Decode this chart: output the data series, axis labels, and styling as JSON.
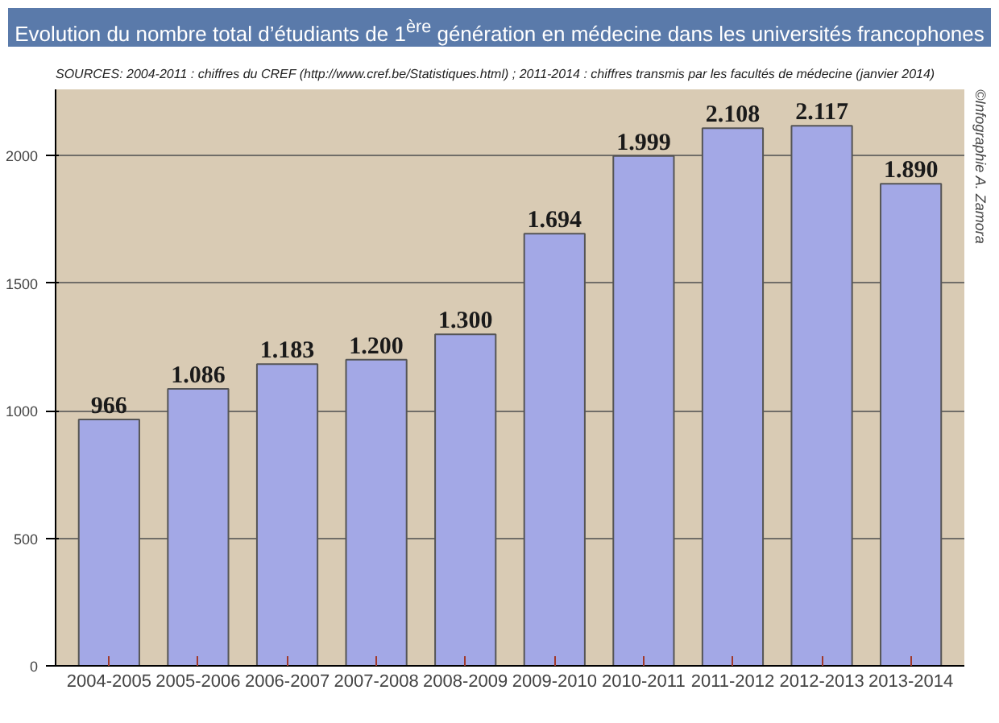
{
  "chart_data": {
    "type": "bar",
    "title": "Evolution du nombre total d’étudiants de 1$^{ère}$ génération en médecine dans les universités francophones",
    "subtitle": "SOURCES: 2004-2011 : chiffres du CREF (http://www.cref.be/Statistiques.html) ; 2011-2014 : chiffres transmis par les facultés de médecine (janvier 2014)",
    "annotations": [
      "©Infographie A. Zamora"
    ],
    "categories": [
      "2004-2005",
      "2005-2006",
      "2006-2007",
      "2007-2008",
      "2008-2009",
      "2009-2010",
      "2010-2011",
      "2011-2012",
      "2012-2013",
      "2013-2014"
    ],
    "values": [
      966,
      1086,
      1183,
      1200,
      1300,
      1694,
      1999,
      2108,
      2117,
      1890
    ],
    "value_labels": [
      "966",
      "1.086",
      "1.183",
      "1.200",
      "1.300",
      "1.694",
      "1.999",
      "2.108",
      "2.117",
      "1.890"
    ],
    "color": "#a3a8e6",
    "ylim": [
      0,
      2260
    ],
    "yticks": [
      0,
      500,
      1000,
      1500,
      2000
    ],
    "grid": "y"
  }
}
